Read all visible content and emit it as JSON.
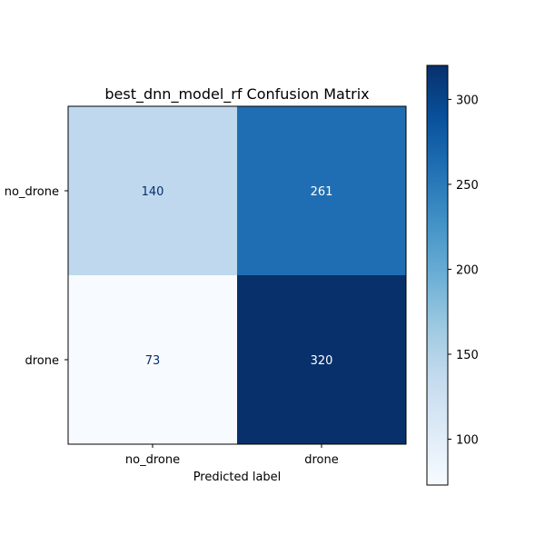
{
  "chart_data": {
    "type": "heatmap",
    "title": "best_dnn_model_rf Confusion Matrix",
    "xlabel": "Predicted label",
    "ylabel": "",
    "x_categories": [
      "no_drone",
      "drone"
    ],
    "y_categories": [
      "no_drone",
      "drone"
    ],
    "values": [
      [
        140,
        261
      ],
      [
        73,
        320
      ]
    ],
    "colormap": "Blues",
    "colorbar": {
      "min": 73,
      "max": 320,
      "ticks": [
        100,
        150,
        200,
        250,
        300
      ]
    },
    "grid": false,
    "text_colors": {
      "dark": "#08306b",
      "light": "#ffffff"
    }
  }
}
